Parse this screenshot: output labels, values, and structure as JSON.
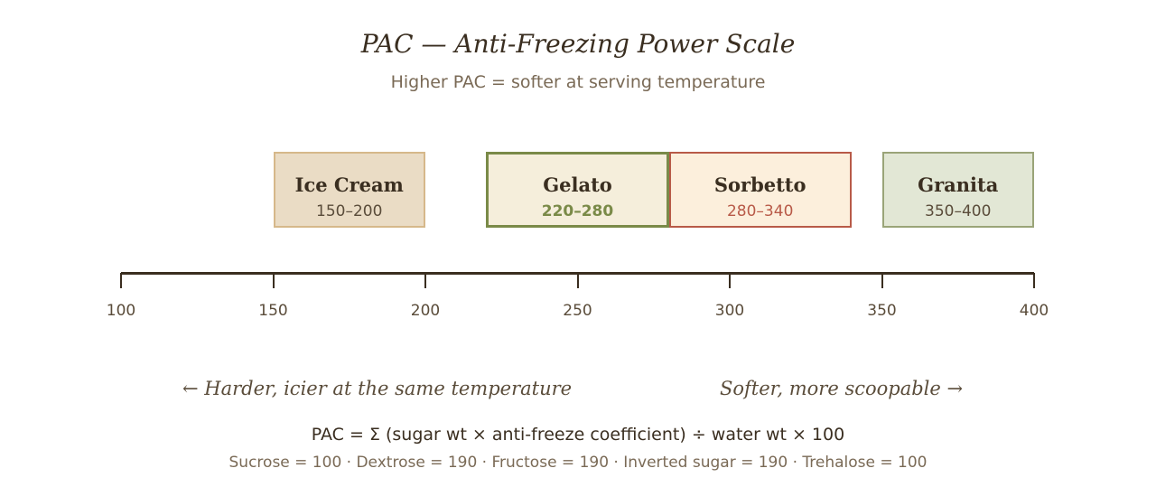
{
  "header": {
    "title": "PAC — Anti-Freezing Power Scale",
    "subtitle": "Higher PAC = softer at serving temperature"
  },
  "scale": {
    "min": 100,
    "max": 400,
    "ticks": [
      "100",
      "150",
      "200",
      "250",
      "300",
      "350",
      "400"
    ]
  },
  "bands": [
    {
      "name": "Ice Cream",
      "range": "150–200",
      "start": 150,
      "end": 200,
      "fill": "#eadcc5",
      "border": "#d6b88a",
      "range_color": "#5a4c3a",
      "highlight": false
    },
    {
      "name": "Gelato",
      "range": "220–280",
      "start": 220,
      "end": 280,
      "fill": "#f5eedb",
      "border": "#7a8a48",
      "range_color": "#7a8a48",
      "highlight": true
    },
    {
      "name": "Sorbetto",
      "range": "280–340",
      "start": 280,
      "end": 340,
      "fill": "#fcefdc",
      "border": "#b85a48",
      "range_color": "#b85a48",
      "highlight": false
    },
    {
      "name": "Granita",
      "range": "350–400",
      "start": 350,
      "end": 400,
      "fill": "#e2e7d5",
      "border": "#9aa478",
      "range_color": "#5a4c3a",
      "highlight": false
    }
  ],
  "notes": {
    "left": "← Harder, icier at the same temperature",
    "right": "Softer, more scoopable →"
  },
  "footer": {
    "formula": "PAC = Σ (sugar wt × anti-freeze coefficient) ÷ water wt × 100",
    "coefficients": "Sucrose = 100 · Dextrose = 190 · Fructose = 190 · Inverted sugar = 190 · Trehalose = 100"
  }
}
